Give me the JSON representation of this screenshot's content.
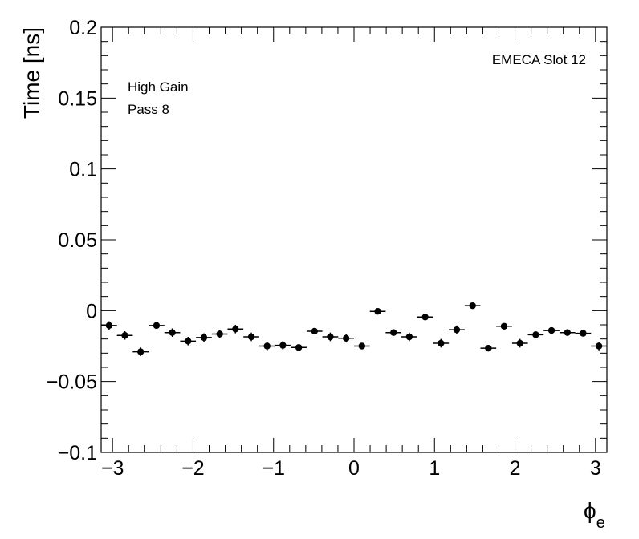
{
  "chart_data": {
    "type": "scatter",
    "ylabel": "Time [ns]",
    "xlabel_symbol": "ϕ",
    "xlabel_subscript": "e",
    "annotations": {
      "slot": "EMECA Slot 12",
      "gain": "High Gain",
      "pass": "Pass 8"
    },
    "xlim": [
      -3.1416,
      3.1416
    ],
    "ylim": [
      -0.1,
      0.2
    ],
    "x_ticks": [
      {
        "value": -3,
        "label": "−3"
      },
      {
        "value": -2,
        "label": "−2"
      },
      {
        "value": -1,
        "label": "−1"
      },
      {
        "value": 0,
        "label": "0"
      },
      {
        "value": 1,
        "label": "1"
      },
      {
        "value": 2,
        "label": "2"
      },
      {
        "value": 3,
        "label": "3"
      }
    ],
    "y_ticks": [
      {
        "value": -0.1,
        "label": "−0.1"
      },
      {
        "value": -0.05,
        "label": "−0.05"
      },
      {
        "value": 0,
        "label": "0"
      },
      {
        "value": 0.05,
        "label": "0.05"
      },
      {
        "value": 0.1,
        "label": "0.1"
      },
      {
        "value": 0.15,
        "label": "0.15"
      },
      {
        "value": 0.2,
        "label": "0.2"
      }
    ],
    "bin_half_width": 0.0982,
    "points": [
      {
        "x": -3.043,
        "y": -0.0105,
        "err": 0.003
      },
      {
        "x": -2.847,
        "y": -0.0175,
        "err": 0.003
      },
      {
        "x": -2.651,
        "y": -0.029,
        "err": 0.003
      },
      {
        "x": -2.454,
        "y": -0.0105,
        "err": 0.002
      },
      {
        "x": -2.258,
        "y": -0.0155,
        "err": 0.003
      },
      {
        "x": -2.062,
        "y": -0.0215,
        "err": 0.003
      },
      {
        "x": -1.865,
        "y": -0.019,
        "err": 0.003
      },
      {
        "x": -1.669,
        "y": -0.0165,
        "err": 0.003
      },
      {
        "x": -1.473,
        "y": -0.013,
        "err": 0.003
      },
      {
        "x": -1.276,
        "y": -0.0185,
        "err": 0.003
      },
      {
        "x": -1.08,
        "y": -0.025,
        "err": 0.003
      },
      {
        "x": -0.884,
        "y": -0.0245,
        "err": 0.003
      },
      {
        "x": -0.687,
        "y": -0.026,
        "err": 0.002
      },
      {
        "x": -0.491,
        "y": -0.0145,
        "err": 0.002
      },
      {
        "x": -0.295,
        "y": -0.0185,
        "err": 0.003
      },
      {
        "x": -0.098,
        "y": -0.0195,
        "err": 0.003
      },
      {
        "x": 0.098,
        "y": -0.025,
        "err": 0.002
      },
      {
        "x": 0.295,
        "y": -0.0005,
        "err": 0.002
      },
      {
        "x": 0.491,
        "y": -0.0155,
        "err": 0.002
      },
      {
        "x": 0.687,
        "y": -0.0185,
        "err": 0.003
      },
      {
        "x": 0.884,
        "y": -0.0045,
        "err": 0.002
      },
      {
        "x": 1.08,
        "y": -0.023,
        "err": 0.003
      },
      {
        "x": 1.276,
        "y": -0.0135,
        "err": 0.003
      },
      {
        "x": 1.473,
        "y": 0.0035,
        "err": 0.002
      },
      {
        "x": 1.669,
        "y": -0.0265,
        "err": 0.002
      },
      {
        "x": 1.865,
        "y": -0.011,
        "err": 0.002
      },
      {
        "x": 2.062,
        "y": -0.023,
        "err": 0.003
      },
      {
        "x": 2.258,
        "y": -0.017,
        "err": 0.002
      },
      {
        "x": 2.454,
        "y": -0.014,
        "err": 0.002
      },
      {
        "x": 2.651,
        "y": -0.0155,
        "err": 0.002
      },
      {
        "x": 2.847,
        "y": -0.016,
        "err": 0.002
      },
      {
        "x": 3.043,
        "y": -0.025,
        "err": 0.003
      }
    ],
    "grid": false,
    "marker_color": "#000000"
  }
}
